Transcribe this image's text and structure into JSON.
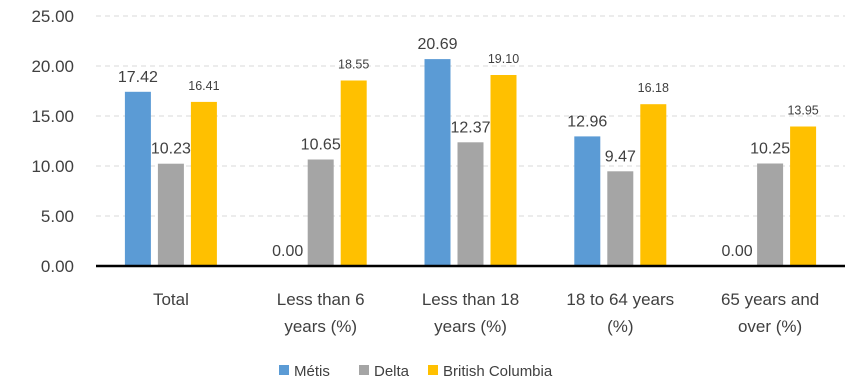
{
  "chart_data": {
    "type": "bar",
    "title": "",
    "xlabel": "",
    "ylabel": "",
    "ylim": [
      0,
      25
    ],
    "yticks": [
      "0.00",
      "5.00",
      "10.00",
      "15.00",
      "20.00",
      "25.00"
    ],
    "grid": true,
    "legend_position": "bottom",
    "categories": [
      [
        "Total"
      ],
      [
        "Less than 6",
        "years (%)"
      ],
      [
        "Less than 18",
        "years (%)"
      ],
      [
        "18 to 64 years",
        "(%)"
      ],
      [
        "65 years and",
        "over (%)"
      ]
    ],
    "series": [
      {
        "name": "Métis",
        "color": "#5B9BD5",
        "values": [
          17.42,
          0.0,
          20.69,
          12.96,
          0.0
        ],
        "labels": [
          "17.42",
          "0.00",
          "20.69",
          "12.96",
          "0.00"
        ]
      },
      {
        "name": "Delta",
        "color": "#A5A5A5",
        "values": [
          10.23,
          10.65,
          12.37,
          9.47,
          10.25
        ],
        "labels": [
          "10.23",
          "10.65",
          "12.37",
          "9.47",
          "10.25"
        ]
      },
      {
        "name": "British Columbia",
        "color": "#FFC000",
        "values": [
          16.41,
          18.55,
          19.1,
          16.18,
          13.95
        ],
        "labels": [
          "16.41",
          "18.55",
          "19.10",
          "16.18",
          "13.95"
        ]
      }
    ]
  }
}
